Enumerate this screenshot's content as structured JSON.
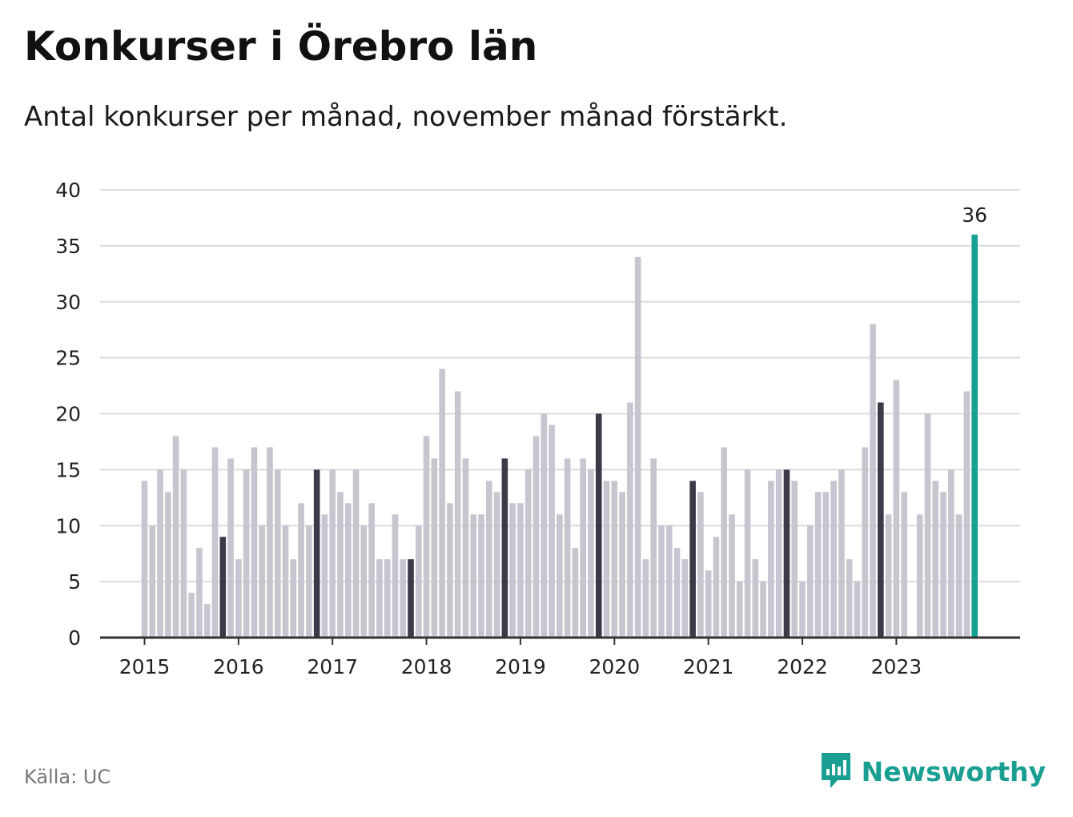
{
  "header": {
    "title": "Konkurser i Örebro län",
    "subtitle": "Antal konkurser per månad, november månad förstärkt."
  },
  "footer": {
    "source": "Källa: UC",
    "brand": "Newsworthy"
  },
  "colors": {
    "bar": "#c6c5d0",
    "november": "#3b3a48",
    "latest": "#16a091",
    "grid": "#dcdcdc",
    "axis": "#333333",
    "brand": "#1a9e92"
  },
  "icons": {
    "brand_logo": "newsworthy-logo-icon"
  },
  "chart_data": {
    "type": "bar",
    "title": "Konkurser i Örebro län",
    "subtitle": "Antal konkurser per månad, november månad förstärkt.",
    "start": "2015-01",
    "frequency": "monthly",
    "x_tick_labels": [
      "2015",
      "2016",
      "2017",
      "2018",
      "2019",
      "2020",
      "2021",
      "2022",
      "2023"
    ],
    "y_ticks": [
      0,
      5,
      10,
      15,
      20,
      25,
      30,
      35,
      40
    ],
    "ylim": [
      0,
      40
    ],
    "grid": true,
    "highlight_month": "november",
    "annotation": {
      "label": "36",
      "month": "2023-11",
      "value": 36
    },
    "values": [
      14,
      10,
      15,
      13,
      18,
      15,
      4,
      8,
      3,
      17,
      9,
      16,
      7,
      15,
      17,
      10,
      17,
      15,
      10,
      7,
      12,
      10,
      15,
      11,
      15,
      13,
      12,
      15,
      10,
      12,
      7,
      7,
      11,
      7,
      7,
      10,
      18,
      16,
      24,
      12,
      22,
      16,
      11,
      11,
      14,
      13,
      16,
      12,
      12,
      15,
      18,
      20,
      19,
      11,
      16,
      8,
      16,
      15,
      20,
      14,
      14,
      13,
      21,
      34,
      7,
      16,
      10,
      10,
      8,
      7,
      14,
      13,
      6,
      9,
      17,
      11,
      5,
      15,
      7,
      5,
      14,
      15,
      15,
      14,
      5,
      10,
      13,
      13,
      14,
      15,
      7,
      5,
      17,
      28,
      21,
      11,
      23,
      13,
      0,
      11,
      20,
      14,
      13,
      15,
      11,
      22,
      36
    ]
  }
}
